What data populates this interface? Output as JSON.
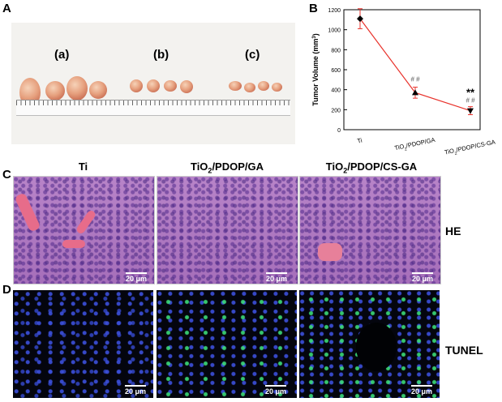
{
  "panels": {
    "a_label": "A",
    "b_label": "B",
    "c_label": "C",
    "d_label": "D"
  },
  "photo": {
    "group_a": "(a)",
    "group_b": "(b)",
    "group_c": "(c)"
  },
  "columns": {
    "ti": "Ti",
    "gA_pre": "TiO",
    "gA_sub": "2",
    "gA_post": "/PDOP/GA",
    "gB_pre": "TiO",
    "gB_sub": "2",
    "gB_post": "/PDOP/CS-GA"
  },
  "rows": {
    "he": "HE",
    "tunel": "TUNEL"
  },
  "scalebar": "20 μm",
  "chart_data": {
    "type": "line",
    "categories": [
      "Ti",
      "TiO2/PDOP/GA",
      "TiO2/PDOP/CS-GA"
    ],
    "values": [
      1110,
      370,
      190
    ],
    "errors": [
      100,
      55,
      40
    ],
    "ylabel": "Tumor Volume (mm3)",
    "ylim": [
      0,
      1200
    ],
    "yticks": [
      0,
      200,
      400,
      600,
      800,
      1000,
      1200
    ],
    "annotations": [
      "# #",
      "# #",
      "**"
    ],
    "color": "#e8322b",
    "grid": false
  }
}
